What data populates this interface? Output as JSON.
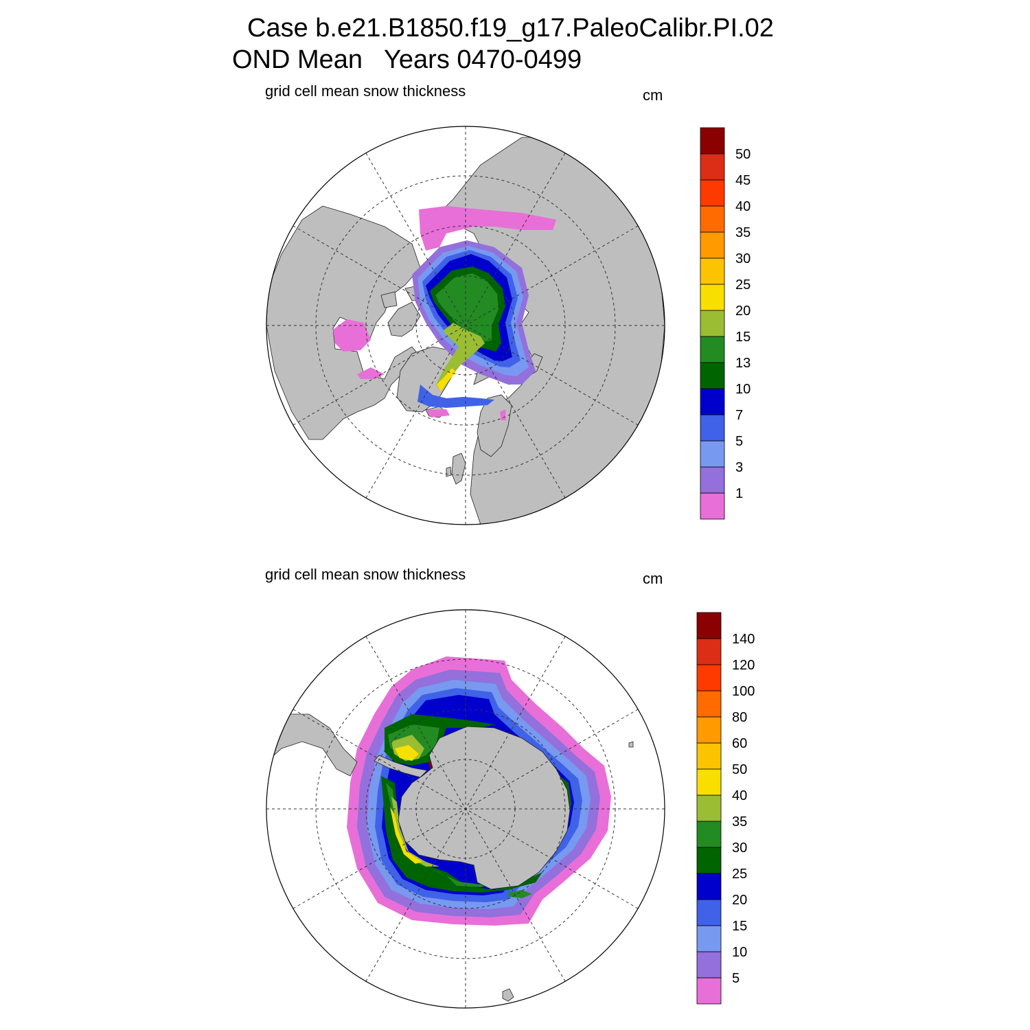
{
  "title": {
    "line1": "Case b.e21.B1850.f19_g17.PaleoCalibr.PI.02",
    "line2": "OND Mean   Years 0470-0499"
  },
  "colors": {
    "land": "#bebebe",
    "palette": [
      "#e86fd8",
      "#9370db",
      "#7799f0",
      "#3f62e8",
      "#0000cd",
      "#006400",
      "#228b22",
      "#9bbd33",
      "#f9df00",
      "#fcc400",
      "#ff9a00",
      "#ff6b00",
      "#ff3a00",
      "#dc2d16",
      "#8b0000"
    ]
  },
  "panels": [
    {
      "id": "north",
      "label": "grid cell mean snow thickness",
      "units": "cm",
      "hemisphere": "Arctic (Northern Hemisphere polar stereographic)",
      "colorbar_labels": [
        "1",
        "3",
        "5",
        "7",
        "10",
        "13",
        "15",
        "20",
        "25",
        "30",
        "35",
        "40",
        "45",
        "50"
      ]
    },
    {
      "id": "south",
      "label": "grid cell mean snow thickness",
      "units": "cm",
      "hemisphere": "Antarctic (Southern Hemisphere polar stereographic)",
      "colorbar_labels": [
        "5",
        "10",
        "15",
        "20",
        "25",
        "30",
        "35",
        "40",
        "50",
        "60",
        "80",
        "100",
        "120",
        "140"
      ]
    }
  ]
}
